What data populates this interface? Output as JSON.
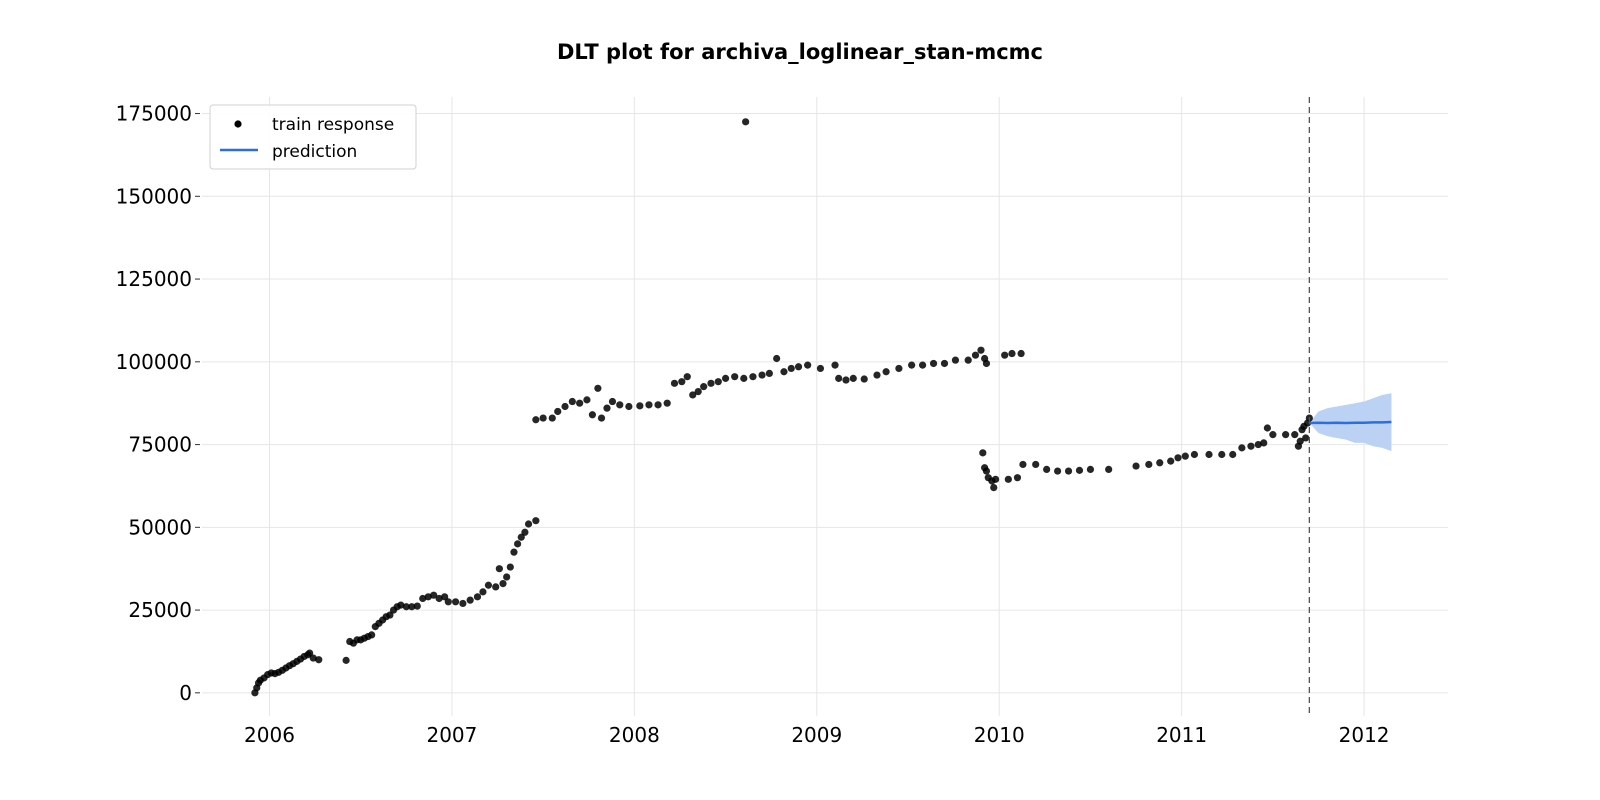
{
  "chart_data": {
    "type": "scatter",
    "title": "DLT plot for archiva_loglinear_stan-mcmc",
    "xlabel": "",
    "ylabel": "",
    "xlim": [
      2005.63,
      2012.46
    ],
    "ylim": [
      -7000,
      180000
    ],
    "x_ticks": [
      2006,
      2007,
      2008,
      2009,
      2010,
      2011,
      2012
    ],
    "y_ticks": [
      0,
      25000,
      50000,
      75000,
      100000,
      125000,
      150000,
      175000
    ],
    "x_tick_labels": [
      "2006",
      "2007",
      "2008",
      "2009",
      "2010",
      "2011",
      "2012"
    ],
    "y_tick_labels": [
      "0",
      "25000",
      "50000",
      "75000",
      "100000",
      "125000",
      "150000",
      "175000"
    ],
    "grid": true,
    "legend_position": "top-left",
    "train_end": 2011.7,
    "series": [
      {
        "name": "train response",
        "kind": "scatter",
        "color": "#000000",
        "points": [
          [
            2005.92,
            0
          ],
          [
            2005.93,
            1500
          ],
          [
            2005.94,
            3000
          ],
          [
            2005.95,
            3800
          ],
          [
            2005.97,
            4500
          ],
          [
            2005.99,
            5500
          ],
          [
            2006.01,
            6000
          ],
          [
            2006.03,
            5800
          ],
          [
            2006.05,
            6200
          ],
          [
            2006.07,
            6800
          ],
          [
            2006.09,
            7500
          ],
          [
            2006.11,
            8200
          ],
          [
            2006.13,
            8800
          ],
          [
            2006.15,
            9500
          ],
          [
            2006.17,
            10200
          ],
          [
            2006.19,
            11000
          ],
          [
            2006.21,
            11500
          ],
          [
            2006.22,
            12000
          ],
          [
            2006.24,
            10500
          ],
          [
            2006.27,
            10000
          ],
          [
            2006.42,
            9800
          ],
          [
            2006.44,
            15500
          ],
          [
            2006.46,
            15000
          ],
          [
            2006.48,
            16000
          ],
          [
            2006.5,
            16000
          ],
          [
            2006.52,
            16500
          ],
          [
            2006.54,
            17000
          ],
          [
            2006.56,
            17500
          ],
          [
            2006.58,
            20000
          ],
          [
            2006.6,
            21000
          ],
          [
            2006.62,
            22000
          ],
          [
            2006.64,
            23000
          ],
          [
            2006.66,
            23500
          ],
          [
            2006.68,
            25000
          ],
          [
            2006.7,
            26000
          ],
          [
            2006.72,
            26500
          ],
          [
            2006.75,
            26000
          ],
          [
            2006.78,
            26000
          ],
          [
            2006.81,
            26200
          ],
          [
            2006.84,
            28500
          ],
          [
            2006.87,
            29000
          ],
          [
            2006.9,
            29500
          ],
          [
            2006.93,
            28500
          ],
          [
            2006.96,
            29000
          ],
          [
            2006.98,
            27500
          ],
          [
            2007.02,
            27500
          ],
          [
            2007.06,
            27000
          ],
          [
            2007.1,
            28000
          ],
          [
            2007.14,
            29000
          ],
          [
            2007.17,
            30500
          ],
          [
            2007.2,
            32500
          ],
          [
            2007.24,
            32000
          ],
          [
            2007.26,
            37500
          ],
          [
            2007.28,
            33000
          ],
          [
            2007.3,
            35000
          ],
          [
            2007.32,
            38000
          ],
          [
            2007.34,
            42500
          ],
          [
            2007.36,
            45000
          ],
          [
            2007.38,
            47000
          ],
          [
            2007.4,
            48500
          ],
          [
            2007.42,
            51000
          ],
          [
            2007.46,
            52000
          ],
          [
            2007.46,
            82500
          ],
          [
            2007.5,
            83000
          ],
          [
            2007.55,
            83000
          ],
          [
            2007.58,
            85000
          ],
          [
            2007.62,
            86500
          ],
          [
            2007.66,
            88000
          ],
          [
            2007.7,
            87500
          ],
          [
            2007.74,
            88500
          ],
          [
            2007.77,
            84000
          ],
          [
            2007.8,
            92000
          ],
          [
            2007.82,
            83000
          ],
          [
            2007.85,
            86000
          ],
          [
            2007.88,
            88000
          ],
          [
            2007.92,
            87000
          ],
          [
            2007.97,
            86500
          ],
          [
            2008.03,
            86700
          ],
          [
            2008.08,
            87000
          ],
          [
            2008.13,
            87000
          ],
          [
            2008.18,
            87500
          ],
          [
            2008.22,
            93500
          ],
          [
            2008.26,
            94000
          ],
          [
            2008.29,
            95500
          ],
          [
            2008.32,
            90000
          ],
          [
            2008.35,
            91000
          ],
          [
            2008.38,
            92500
          ],
          [
            2008.42,
            93500
          ],
          [
            2008.46,
            94000
          ],
          [
            2008.5,
            95000
          ],
          [
            2008.55,
            95500
          ],
          [
            2008.6,
            95000
          ],
          [
            2008.61,
            172500
          ],
          [
            2008.65,
            95500
          ],
          [
            2008.7,
            96000
          ],
          [
            2008.74,
            96500
          ],
          [
            2008.78,
            101000
          ],
          [
            2008.82,
            97000
          ],
          [
            2008.86,
            98000
          ],
          [
            2008.9,
            98500
          ],
          [
            2008.95,
            99000
          ],
          [
            2009.02,
            98000
          ],
          [
            2009.1,
            99000
          ],
          [
            2009.12,
            95000
          ],
          [
            2009.16,
            94500
          ],
          [
            2009.2,
            95000
          ],
          [
            2009.26,
            94800
          ],
          [
            2009.33,
            96000
          ],
          [
            2009.38,
            97000
          ],
          [
            2009.45,
            98000
          ],
          [
            2009.52,
            99000
          ],
          [
            2009.58,
            99000
          ],
          [
            2009.64,
            99500
          ],
          [
            2009.7,
            99500
          ],
          [
            2009.76,
            100500
          ],
          [
            2009.83,
            100500
          ],
          [
            2009.87,
            102000
          ],
          [
            2009.9,
            103500
          ],
          [
            2009.92,
            101000
          ],
          [
            2009.93,
            99500
          ],
          [
            2010.03,
            102000
          ],
          [
            2010.07,
            102500
          ],
          [
            2010.12,
            102500
          ],
          [
            2009.91,
            72500
          ],
          [
            2009.92,
            68000
          ],
          [
            2009.93,
            67000
          ],
          [
            2009.94,
            65000
          ],
          [
            2009.96,
            64000
          ],
          [
            2009.97,
            62000
          ],
          [
            2009.98,
            64500
          ],
          [
            2010.05,
            64500
          ],
          [
            2010.1,
            65000
          ],
          [
            2010.13,
            69000
          ],
          [
            2010.2,
            69000
          ],
          [
            2010.26,
            67500
          ],
          [
            2010.32,
            67000
          ],
          [
            2010.38,
            67000
          ],
          [
            2010.44,
            67200
          ],
          [
            2010.5,
            67500
          ],
          [
            2010.6,
            67500
          ],
          [
            2010.75,
            68500
          ],
          [
            2010.82,
            69000
          ],
          [
            2010.88,
            69500
          ],
          [
            2010.94,
            70000
          ],
          [
            2010.98,
            71000
          ],
          [
            2011.02,
            71500
          ],
          [
            2011.07,
            72000
          ],
          [
            2011.15,
            72000
          ],
          [
            2011.22,
            72000
          ],
          [
            2011.28,
            72000
          ],
          [
            2011.33,
            74000
          ],
          [
            2011.38,
            74500
          ],
          [
            2011.42,
            75000
          ],
          [
            2011.45,
            75500
          ],
          [
            2011.47,
            80000
          ],
          [
            2011.5,
            78000
          ],
          [
            2011.57,
            78000
          ],
          [
            2011.62,
            78000
          ],
          [
            2011.64,
            74500
          ],
          [
            2011.65,
            76000
          ],
          [
            2011.66,
            79500
          ],
          [
            2011.67,
            80500
          ],
          [
            2011.68,
            77000
          ],
          [
            2011.69,
            81500
          ],
          [
            2011.7,
            83000
          ]
        ]
      },
      {
        "name": "prediction",
        "kind": "line",
        "color": "#2c6ee0",
        "band_color": "#bcd2f5",
        "x": [
          2011.7,
          2011.75,
          2011.8,
          2011.85,
          2011.9,
          2011.95,
          2012.0,
          2012.05,
          2012.1,
          2012.15
        ],
        "y": [
          81500,
          81600,
          81500,
          81600,
          81500,
          81600,
          81600,
          81700,
          81700,
          81800
        ],
        "lower": [
          81500,
          78500,
          77500,
          77000,
          76500,
          75500,
          75500,
          74500,
          74000,
          73000
        ],
        "upper": [
          81500,
          85000,
          86000,
          86500,
          87000,
          87500,
          88000,
          89000,
          90000,
          90500
        ]
      }
    ]
  }
}
